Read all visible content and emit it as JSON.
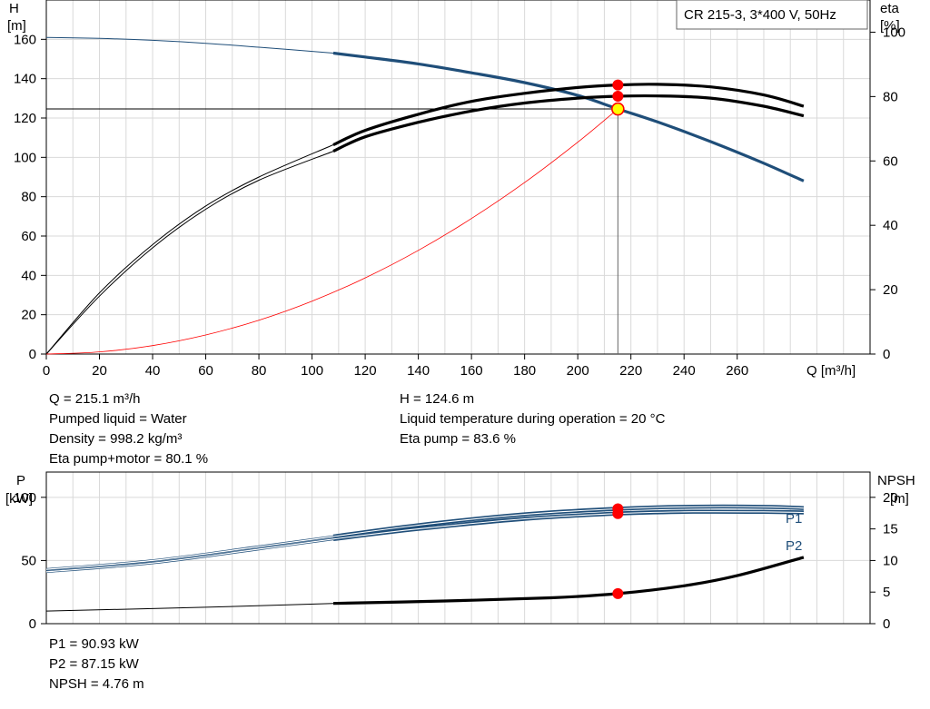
{
  "chart_data": [
    {
      "type": "line",
      "title": "CR 215-3, 3*400 V, 50Hz",
      "xlabel": "Q [m³/h]",
      "y_left_label": [
        "H",
        "[m]"
      ],
      "y_right_label": [
        "eta",
        "[%]"
      ],
      "xlim": [
        0,
        310
      ],
      "ylim_left": [
        0,
        180
      ],
      "ylim_right": [
        0,
        110
      ],
      "grid": true,
      "x_ticks": [
        0,
        20,
        40,
        60,
        80,
        100,
        120,
        140,
        160,
        180,
        200,
        220,
        240,
        260
      ],
      "y_left_ticks": [
        0,
        20,
        40,
        60,
        80,
        100,
        120,
        140,
        160
      ],
      "y_right_ticks": [
        0,
        20,
        40,
        60,
        80,
        100
      ],
      "series": [
        {
          "key": "H",
          "axis": "left",
          "color": "#1f4e79",
          "x": [
            0,
            20,
            40,
            60,
            80,
            108,
            120,
            140,
            160,
            180,
            200,
            215.1,
            230,
            250,
            270,
            285
          ],
          "y": [
            161,
            160.5,
            159.5,
            158,
            156,
            153,
            151,
            147.5,
            143,
            138,
            131.5,
            124.6,
            118,
            108,
            97,
            88
          ]
        },
        {
          "key": "eta_pump",
          "axis": "right",
          "color": "#000000",
          "x": [
            0,
            20,
            40,
            60,
            80,
            108,
            120,
            140,
            160,
            180,
            200,
            215.1,
            230,
            250,
            270,
            285
          ],
          "y": [
            0,
            19,
            34,
            46,
            55,
            65,
            69.5,
            74.5,
            78.5,
            81,
            82.8,
            83.6,
            83.8,
            83,
            80.5,
            77
          ]
        },
        {
          "key": "eta_pump_motor",
          "axis": "right",
          "color": "#000000",
          "x": [
            0,
            20,
            40,
            60,
            80,
            108,
            120,
            140,
            160,
            180,
            200,
            215.1,
            230,
            250,
            270,
            285
          ],
          "y": [
            0,
            18,
            33,
            45,
            54,
            63,
            67.5,
            72,
            75.5,
            78,
            79.5,
            80.1,
            80.2,
            79.5,
            77,
            74
          ]
        },
        {
          "key": "system",
          "axis": "left",
          "color": "#ff0000",
          "x": [
            0,
            20,
            40,
            60,
            80,
            100,
            120,
            140,
            160,
            180,
            200,
            215.1
          ],
          "y": [
            0,
            1.1,
            4.3,
            9.7,
            17.2,
            26.9,
            38.7,
            52.7,
            68.9,
            87.2,
            107.7,
            124.6
          ]
        }
      ],
      "duty_point": {
        "Q": 215.1,
        "H": 124.6,
        "eta_pump": 83.6,
        "eta_pump_motor": 80.1
      }
    },
    {
      "type": "line",
      "xlim": [
        0,
        310
      ],
      "ylim_left": [
        0,
        120
      ],
      "ylim_right": [
        0,
        24
      ],
      "y_left_label": [
        "P",
        "[kW]"
      ],
      "y_right_label": [
        "NPSH",
        "[m]"
      ],
      "grid": true,
      "y_left_ticks": [
        0,
        50,
        100
      ],
      "y_right_ticks": [
        0,
        5,
        10,
        15,
        20
      ],
      "series": [
        {
          "key": "P1",
          "name": "P1",
          "axis": "left",
          "color": "#1f4e79",
          "x": [
            0,
            40,
            80,
            108,
            140,
            180,
            215.1,
            240,
            270,
            285
          ],
          "y": [
            43,
            50,
            61,
            69,
            78,
            86.5,
            90.93,
            92.5,
            92.5,
            91.5
          ]
        },
        {
          "key": "P2",
          "name": "P2",
          "axis": "left",
          "color": "#1f4e79",
          "x": [
            0,
            40,
            80,
            108,
            140,
            180,
            215.1,
            240,
            270,
            285
          ],
          "y": [
            41,
            48,
            59,
            67,
            75,
            83,
            87.15,
            88.5,
            88.5,
            88
          ]
        },
        {
          "key": "NPSH",
          "axis": "right",
          "color": "#000000",
          "x": [
            0,
            60,
            108,
            150,
            190,
            215.1,
            240,
            260,
            285
          ],
          "y": [
            2,
            2.6,
            3.2,
            3.6,
            4.1,
            4.76,
            6,
            7.6,
            10.5
          ]
        }
      ],
      "duty_point": {
        "Q": 215.1,
        "P1": 90.93,
        "P2": 87.15,
        "NPSH": 4.76
      }
    }
  ],
  "info_top_left": [
    "Q = 215.1 m³/h",
    "Pumped liquid = Water",
    "Density = 998.2 kg/m³",
    "Eta pump+motor = 80.1 %"
  ],
  "info_top_right": [
    "H = 124.6 m",
    "Liquid temperature during operation = 20 °C",
    "Eta pump = 83.6 %"
  ],
  "info_bottom": [
    "P1 = 90.93 kW",
    "P2 = 87.15 kW",
    "NPSH = 4.76 m"
  ]
}
